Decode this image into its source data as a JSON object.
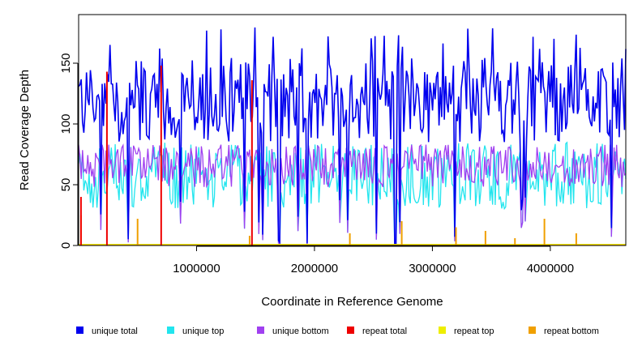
{
  "chart_data": {
    "type": "line",
    "xlabel": "Coordinate in Reference Genome",
    "ylabel": "Read Coverage Depth",
    "xlim": [
      0,
      4640000
    ],
    "ylim": [
      0,
      190
    ],
    "x_ticks": [
      1000000,
      2000000,
      3000000,
      4000000
    ],
    "x_tick_labels": [
      "1000000",
      "2000000",
      "3000000",
      "4000000"
    ],
    "y_ticks": [
      0,
      50,
      100,
      150
    ],
    "y_tick_labels": [
      "0",
      "50",
      "100",
      "150"
    ],
    "grid": false,
    "legend_position": "bottom",
    "series": [
      {
        "name": "unique total",
        "color": "#0000ee",
        "typical_range": [
          80,
          160
        ],
        "peak": 183
      },
      {
        "name": "unique top",
        "color": "#22e5ee",
        "typical_range": [
          30,
          85
        ]
      },
      {
        "name": "unique bottom",
        "color": "#a040f0",
        "typical_range": [
          45,
          85
        ]
      },
      {
        "name": "repeat total",
        "color": "#ee0000",
        "spikes": [
          [
            20000,
            40
          ],
          [
            240000,
            143
          ],
          [
            700000,
            148
          ],
          [
            1470000,
            136
          ]
        ]
      },
      {
        "name": "repeat top",
        "color": "#eeee00",
        "typical_range": [
          0,
          5
        ]
      },
      {
        "name": "repeat bottom",
        "color": "#f0a000",
        "typical_range": [
          0,
          25
        ]
      }
    ]
  }
}
